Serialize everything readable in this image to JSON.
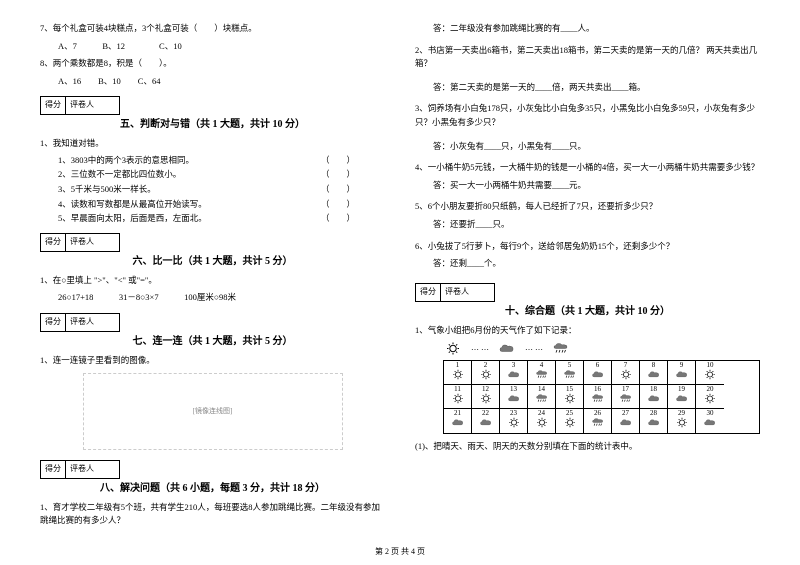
{
  "left": {
    "q7": {
      "text": "7、每个礼盒可装4块糕点，3个礼盒可装（　　）块糕点。",
      "opts": "A、7　　　B、12　　　　C、10"
    },
    "q8": {
      "text": "8、两个乘数都是8，积是（　　）。",
      "opts": "A、16　　B、10　　C、64"
    },
    "scoreLabels": {
      "a": "得分",
      "b": "评卷人"
    },
    "sec5": {
      "title": "五、判断对与错（共 1 大题，共计 10 分）",
      "lead": "1、我知道对错。",
      "items": [
        "1、3803中的两个3表示的意思相同。",
        "2、三位数不一定都比四位数小。",
        "3、5千米与500米一样长。",
        "4、读数和写数都是从最高位开始读写。",
        "5、早晨面向太阳，后面是西，左面北。"
      ]
    },
    "sec6": {
      "title": "六、比一比（共 1 大题，共计 5 分）",
      "lead": "1、在○里填上 \">\"、\"<\" 或\"=\"。",
      "row": "26○17+18　　　31－8○3×7　　　100厘米○98米"
    },
    "sec7": {
      "title": "七、连一连（共 1 大题，共计 5 分）",
      "lead": "1、连一连镜子里看到的图像。",
      "placeholder": "[镜像连线图]"
    },
    "sec8": {
      "title": "八、解决问题（共 6 小题，每题 3 分，共计 18 分）",
      "q1": "1、育才学校二年级有5个班，共有学生210人，每班要选8人参加跳绳比赛。二年级没有参加跳绳比赛的有多少人？"
    }
  },
  "right": {
    "a1": "答：二年级没有参加跳绳比赛的有____人。",
    "q2": "2、书店第一天卖出6箱书，第二天卖出18箱书，第二天卖的是第一天的几倍？ 两天共卖出几箱？",
    "a2": "答：第二天卖的是第一天的____倍，两天共卖出____箱。",
    "q3": "3、饲养场有小白兔178只，小灰兔比小白兔多35只，小黑兔比小白兔多59只，小灰兔有多少只？小黑兔有多少只？",
    "a3": "答：小灰兔有____只，小黑兔有____只。",
    "q4": "4、一小桶牛奶5元钱，一大桶牛奶的钱是一小桶的4倍，买一大一小两桶牛奶共需要多少钱？",
    "a4": "答：买一大一小两桶牛奶共需要____元。",
    "q5": "5、6个小朋友要折80只纸鹤，每人已经折了7只，还要折多少只？",
    "a5": "答：还要折____只。",
    "q6": "6、小兔拔了5行萝卜，每行9个，送给邻居兔奶奶15个，还剩多少个？",
    "a6": "答：还剩____个。",
    "sec10": {
      "title": "十、综合题（共 1 大题，共计 10 分）",
      "lead": "1、气象小组把6月份的天气作了如下记录：",
      "calendar": [
        [
          {
            "n": "1",
            "w": "s"
          },
          {
            "n": "2",
            "w": "s"
          },
          {
            "n": "3",
            "w": "c"
          },
          {
            "n": "4",
            "w": "r"
          },
          {
            "n": "5",
            "w": "r"
          },
          {
            "n": "6",
            "w": "c"
          },
          {
            "n": "7",
            "w": "s"
          },
          {
            "n": "8",
            "w": "c"
          },
          {
            "n": "9",
            "w": "c"
          },
          {
            "n": "10",
            "w": "s"
          }
        ],
        [
          {
            "n": "11",
            "w": "s"
          },
          {
            "n": "12",
            "w": "s"
          },
          {
            "n": "13",
            "w": "c"
          },
          {
            "n": "14",
            "w": "r"
          },
          {
            "n": "15",
            "w": "s"
          },
          {
            "n": "16",
            "w": "r"
          },
          {
            "n": "17",
            "w": "r"
          },
          {
            "n": "18",
            "w": "c"
          },
          {
            "n": "19",
            "w": "c"
          },
          {
            "n": "20",
            "w": "s"
          }
        ],
        [
          {
            "n": "21",
            "w": "c"
          },
          {
            "n": "22",
            "w": "c"
          },
          {
            "n": "23",
            "w": "s"
          },
          {
            "n": "24",
            "w": "s"
          },
          {
            "n": "25",
            "w": "s"
          },
          {
            "n": "26",
            "w": "r"
          },
          {
            "n": "27",
            "w": "c"
          },
          {
            "n": "28",
            "w": "c"
          },
          {
            "n": "29",
            "w": "s"
          },
          {
            "n": "30",
            "w": "c"
          }
        ]
      ],
      "legendIcons": [
        "s",
        "c",
        "r"
      ],
      "footline": "(1)、把晴天、雨天、阴天的天数分别填在下面的统计表中。"
    }
  },
  "footer": "第 2 页 共 4 页",
  "colors": {
    "text": "#000000",
    "bg": "#ffffff",
    "placeholder": "#888888"
  }
}
